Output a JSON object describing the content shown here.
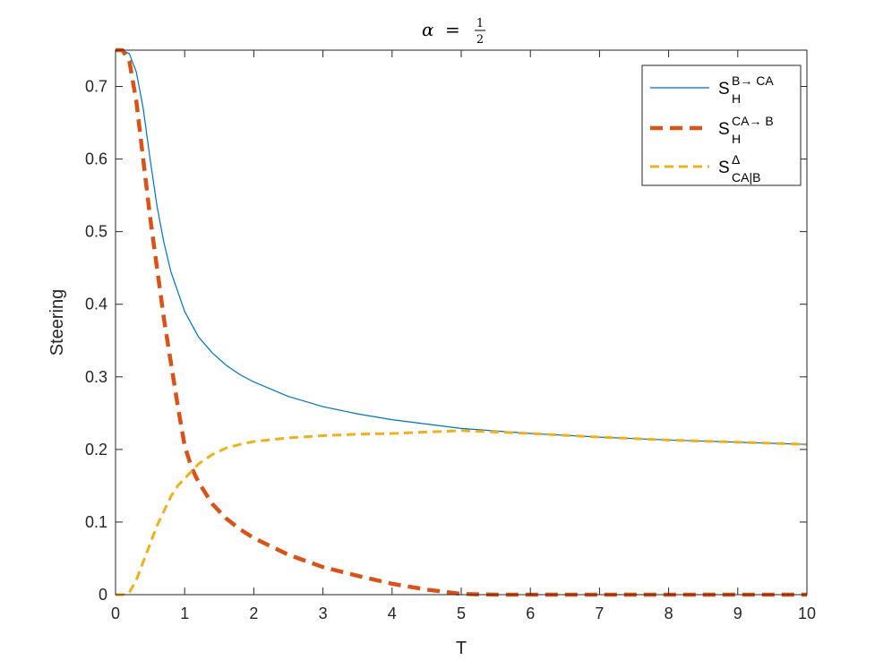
{
  "chart_data": {
    "type": "line",
    "title": {
      "symbol": "α",
      "equals": "=",
      "numerator": "1",
      "denominator": "2"
    },
    "xlabel": "T",
    "ylabel": "Steering",
    "xlim": [
      0,
      10
    ],
    "ylim": [
      0,
      0.75
    ],
    "xticks": [
      0,
      1,
      2,
      3,
      4,
      5,
      6,
      7,
      8,
      9,
      10
    ],
    "xtick_labels": [
      "0",
      "1",
      "2",
      "3",
      "4",
      "5",
      "6",
      "7",
      "8",
      "9",
      "10"
    ],
    "yticks": [
      0,
      0.1,
      0.2,
      0.3,
      0.4,
      0.5,
      0.6,
      0.7
    ],
    "ytick_labels": [
      "0",
      "0.1",
      "0.2",
      "0.3",
      "0.4",
      "0.5",
      "0.6",
      "0.7"
    ],
    "grid": false,
    "legend_position": "top-right",
    "series": [
      {
        "legend_base": "S",
        "legend_sub": "H",
        "legend_sup": "B→ CA",
        "color": "#0072BD",
        "style": "solid",
        "x": [
          0,
          0.1,
          0.2,
          0.3,
          0.4,
          0.5,
          0.6,
          0.7,
          0.8,
          1.0,
          1.2,
          1.4,
          1.6,
          1.8,
          2.0,
          2.5,
          3.0,
          3.5,
          4.0,
          4.5,
          5.0,
          6.0,
          7.0,
          8.0,
          9.0,
          10.0
        ],
        "y": [
          0.75,
          0.75,
          0.745,
          0.72,
          0.67,
          0.6,
          0.535,
          0.485,
          0.445,
          0.39,
          0.355,
          0.333,
          0.316,
          0.303,
          0.293,
          0.273,
          0.259,
          0.249,
          0.241,
          0.235,
          0.229,
          0.222,
          0.217,
          0.213,
          0.21,
          0.207
        ]
      },
      {
        "legend_base": "S",
        "legend_sub": "H",
        "legend_sup": "CA→ B",
        "color": "#D95319",
        "style": "dashed-thick",
        "x": [
          0,
          0.1,
          0.2,
          0.3,
          0.4,
          0.5,
          0.6,
          0.7,
          0.8,
          0.9,
          1.0,
          1.1,
          1.2,
          1.4,
          1.6,
          1.8,
          2.0,
          2.5,
          3.0,
          3.5,
          4.0,
          4.5,
          5.0,
          5.5,
          6.0,
          7.0,
          8.0,
          9.0,
          10.0
        ],
        "y": [
          0.75,
          0.75,
          0.735,
          0.68,
          0.6,
          0.52,
          0.45,
          0.38,
          0.32,
          0.26,
          0.205,
          0.175,
          0.155,
          0.125,
          0.105,
          0.09,
          0.078,
          0.055,
          0.038,
          0.026,
          0.015,
          0.007,
          0.001,
          0,
          0,
          0,
          0,
          0,
          0
        ]
      },
      {
        "legend_base": "S",
        "legend_sub": "CA|B",
        "legend_sup": "Δ",
        "color": "#EDB120",
        "style": "dashed",
        "x": [
          0,
          0.1,
          0.2,
          0.3,
          0.4,
          0.5,
          0.6,
          0.7,
          0.8,
          0.9,
          1.0,
          1.2,
          1.4,
          1.6,
          1.8,
          2.0,
          2.5,
          3.0,
          3.5,
          4.0,
          4.5,
          5.0,
          6.0,
          7.0,
          8.0,
          9.0,
          10.0
        ],
        "y": [
          0,
          0,
          0.003,
          0.02,
          0.045,
          0.07,
          0.095,
          0.115,
          0.135,
          0.15,
          0.16,
          0.18,
          0.193,
          0.202,
          0.207,
          0.211,
          0.216,
          0.219,
          0.221,
          0.222,
          0.224,
          0.226,
          0.222,
          0.217,
          0.213,
          0.21,
          0.207
        ]
      }
    ]
  }
}
